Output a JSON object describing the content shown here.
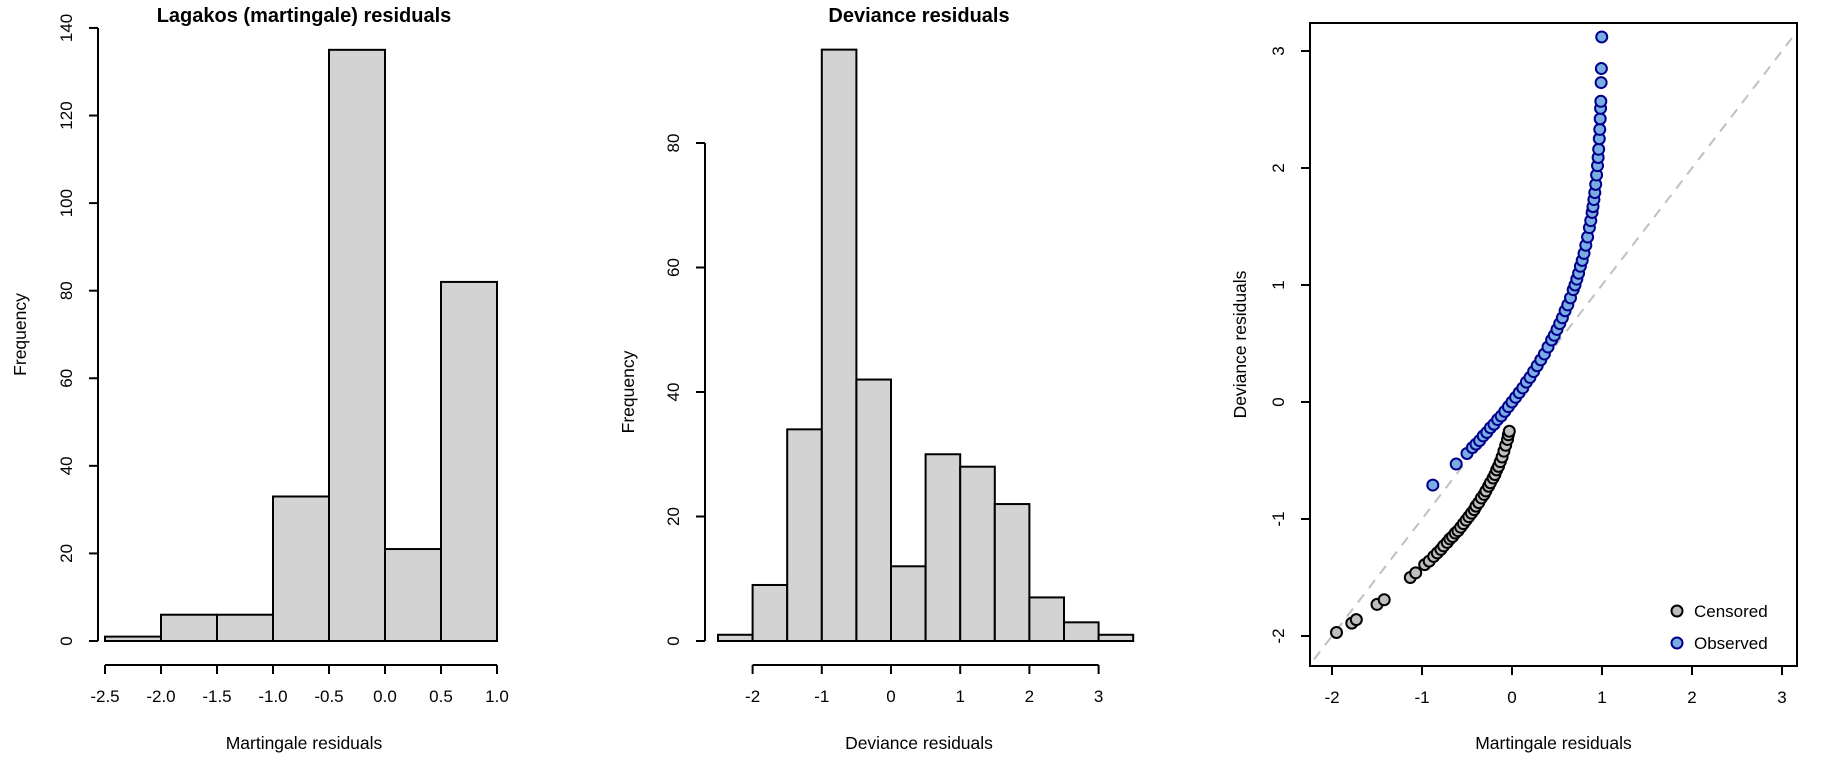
{
  "figure": {
    "background": "#ffffff",
    "panel_count": 3
  },
  "chart_data": [
    {
      "id": "martingale-histogram",
      "type": "bar",
      "title": "Lagakos (martingale) residuals",
      "xlabel": "Martingale residuals",
      "ylabel": "Frequency",
      "bin_start": -2.5,
      "bin_width": 0.5,
      "values": [
        1,
        6,
        6,
        33,
        135,
        21,
        82
      ],
      "categories": [
        "[-2.5,-2)",
        "[-2,-1.5)",
        "[-1.5,-1)",
        "[-1,-0.5)",
        "[-0.5,0)",
        "[0,0.5)",
        "[0.5,1]"
      ],
      "xtick_values": [
        -2.5,
        -2.0,
        -1.5,
        -1.0,
        -0.5,
        0.0,
        0.5,
        1.0
      ],
      "xtick_labels": [
        "-2.5",
        "-2.0",
        "-1.5",
        "-1.0",
        "-0.5",
        "0.0",
        "0.5",
        "1.0"
      ],
      "ytick_values": [
        0,
        20,
        40,
        60,
        80,
        100,
        120,
        140
      ],
      "ytick_labels": [
        "0",
        "20",
        "40",
        "60",
        "80",
        "100",
        "120",
        "140"
      ],
      "ylim": [
        0,
        140
      ],
      "grid": false,
      "bar_fill": "#d3d3d3",
      "bar_stroke": "#000000"
    },
    {
      "id": "deviance-histogram",
      "type": "bar",
      "title": "Deviance residuals",
      "xlabel": "Deviance residuals",
      "ylabel": "Frequency",
      "bin_start": -2.5,
      "bin_width": 0.5,
      "values": [
        1,
        9,
        34,
        95,
        42,
        12,
        30,
        28,
        22,
        7,
        3,
        1
      ],
      "categories": [
        "[-2.5,-2)",
        "[-2,-1.5)",
        "[-1.5,-1)",
        "[-1,-0.5)",
        "[-0.5,0)",
        "[0,0.5)",
        "[0.5,1)",
        "[1,1.5)",
        "[1.5,2)",
        "[2,2.5)",
        "[2.5,3)",
        "[3,3.5]"
      ],
      "xtick_values": [
        -2,
        -1,
        0,
        1,
        2,
        3
      ],
      "xtick_labels": [
        "-2",
        "-1",
        "0",
        "1",
        "2",
        "3"
      ],
      "ytick_values": [
        0,
        20,
        40,
        60,
        80
      ],
      "ytick_labels": [
        "0",
        "20",
        "40",
        "60",
        "80"
      ],
      "ylim": [
        0,
        95
      ],
      "grid": false,
      "bar_fill": "#d3d3d3",
      "bar_stroke": "#000000"
    },
    {
      "id": "deviance-vs-martingale-scatter",
      "type": "scatter",
      "title": "",
      "xlabel": "Martingale residuals",
      "ylabel": "Deviance residuals",
      "xlim": [
        -2.24,
        3.17
      ],
      "ylim": [
        -2.26,
        3.24
      ],
      "xtick_values": [
        -2,
        -1,
        0,
        1,
        2,
        3
      ],
      "xtick_labels": [
        "-2",
        "-1",
        "0",
        "1",
        "2",
        "3"
      ],
      "ytick_values": [
        -2,
        -1,
        0,
        1,
        2,
        3
      ],
      "ytick_labels": [
        "-2",
        "-1",
        "0",
        "1",
        "2",
        "3"
      ],
      "grid": false,
      "box": true,
      "reference_line": {
        "type": "identity",
        "from": [
          -2.2,
          -2.2
        ],
        "to": [
          3.15,
          3.15
        ],
        "color": "#c0c0c0",
        "dashed": true
      },
      "legend": {
        "position": "bottomright",
        "entries": [
          "Censored",
          "Observed"
        ]
      },
      "series": [
        {
          "name": "Censored",
          "marker": "circle",
          "marker_fill": "#bebebe",
          "marker_stroke": "#000000",
          "points": [
            [
              -1.95,
              -1.97
            ],
            [
              -1.78,
              -1.89
            ],
            [
              -1.73,
              -1.86
            ],
            [
              -1.5,
              -1.73
            ],
            [
              -1.42,
              -1.69
            ],
            [
              -1.13,
              -1.5
            ],
            [
              -1.07,
              -1.46
            ],
            [
              -0.97,
              -1.39
            ],
            [
              -0.92,
              -1.36
            ],
            [
              -0.87,
              -1.32
            ],
            [
              -0.83,
              -1.29
            ],
            [
              -0.79,
              -1.26
            ],
            [
              -0.76,
              -1.23
            ],
            [
              -0.72,
              -1.2
            ],
            [
              -0.69,
              -1.17
            ],
            [
              -0.66,
              -1.15
            ],
            [
              -0.63,
              -1.12
            ],
            [
              -0.6,
              -1.1
            ],
            [
              -0.57,
              -1.07
            ],
            [
              -0.54,
              -1.04
            ],
            [
              -0.51,
              -1.01
            ],
            [
              -0.48,
              -0.98
            ],
            [
              -0.45,
              -0.95
            ],
            [
              -0.42,
              -0.92
            ],
            [
              -0.4,
              -0.89
            ],
            [
              -0.37,
              -0.86
            ],
            [
              -0.34,
              -0.82
            ],
            [
              -0.31,
              -0.79
            ],
            [
              -0.29,
              -0.76
            ],
            [
              -0.26,
              -0.72
            ],
            [
              -0.24,
              -0.69
            ],
            [
              -0.21,
              -0.65
            ],
            [
              -0.19,
              -0.62
            ],
            [
              -0.17,
              -0.58
            ],
            [
              -0.15,
              -0.55
            ],
            [
              -0.13,
              -0.51
            ],
            [
              -0.11,
              -0.47
            ],
            [
              -0.09,
              -0.42
            ],
            [
              -0.07,
              -0.37
            ],
            [
              -0.05,
              -0.32
            ],
            [
              -0.04,
              -0.28
            ],
            [
              -0.03,
              -0.25
            ]
          ]
        },
        {
          "name": "Observed",
          "marker": "circle",
          "marker_fill": "#7aade4",
          "marker_stroke": "#00008b",
          "points": [
            [
              -0.88,
              -0.71
            ],
            [
              -0.62,
              -0.53
            ],
            [
              -0.5,
              -0.44
            ],
            [
              -0.44,
              -0.39
            ],
            [
              -0.4,
              -0.36
            ],
            [
              -0.36,
              -0.33
            ],
            [
              -0.32,
              -0.29
            ],
            [
              -0.28,
              -0.26
            ],
            [
              -0.24,
              -0.22
            ],
            [
              -0.2,
              -0.19
            ],
            [
              -0.16,
              -0.15
            ],
            [
              -0.12,
              -0.12
            ],
            [
              -0.08,
              -0.08
            ],
            [
              -0.04,
              -0.04
            ],
            [
              0.0,
              0.0
            ],
            [
              0.04,
              0.04
            ],
            [
              0.08,
              0.08
            ],
            [
              0.12,
              0.12
            ],
            [
              0.16,
              0.17
            ],
            [
              0.2,
              0.21
            ],
            [
              0.24,
              0.26
            ],
            [
              0.28,
              0.31
            ],
            [
              0.32,
              0.36
            ],
            [
              0.36,
              0.41
            ],
            [
              0.4,
              0.47
            ],
            [
              0.44,
              0.53
            ],
            [
              0.47,
              0.57
            ],
            [
              0.5,
              0.62
            ],
            [
              0.53,
              0.67
            ],
            [
              0.56,
              0.72
            ],
            [
              0.59,
              0.78
            ],
            [
              0.62,
              0.83
            ],
            [
              0.65,
              0.89
            ],
            [
              0.68,
              0.96
            ],
            [
              0.7,
              1.0
            ],
            [
              0.72,
              1.05
            ],
            [
              0.74,
              1.1
            ],
            [
              0.76,
              1.16
            ],
            [
              0.78,
              1.21
            ],
            [
              0.8,
              1.27
            ],
            [
              0.82,
              1.34
            ],
            [
              0.84,
              1.41
            ],
            [
              0.86,
              1.49
            ],
            [
              0.875,
              1.55
            ],
            [
              0.89,
              1.62
            ],
            [
              0.9,
              1.67
            ],
            [
              0.91,
              1.73
            ],
            [
              0.92,
              1.79
            ],
            [
              0.93,
              1.86
            ],
            [
              0.94,
              1.94
            ],
            [
              0.95,
              2.02
            ],
            [
              0.957,
              2.09
            ],
            [
              0.963,
              2.16
            ],
            [
              0.97,
              2.25
            ],
            [
              0.975,
              2.33
            ],
            [
              0.98,
              2.42
            ],
            [
              0.984,
              2.51
            ],
            [
              0.987,
              2.57
            ],
            [
              0.99,
              2.73
            ],
            [
              0.993,
              2.85
            ],
            [
              0.997,
              3.12
            ]
          ]
        }
      ]
    }
  ]
}
